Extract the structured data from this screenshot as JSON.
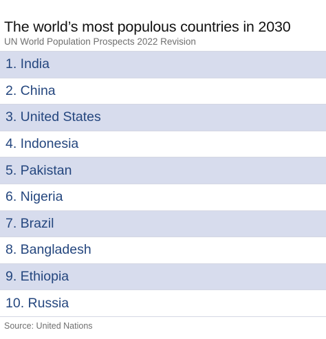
{
  "chart_data": {
    "type": "table",
    "title": "The world’s most populous countries in 2030",
    "subtitle": "UN World Population Prospects 2022 Revision",
    "rows": [
      "1. India",
      "2. China",
      "3. United States",
      "4. Indonesia",
      "5. Pakistan",
      "6. Nigeria",
      "7. Brazil",
      "8. Bangladesh",
      "9. Ethiopia",
      "10. Russia"
    ],
    "source": "Source: United Nations"
  },
  "colors": {
    "row_shade": "#d7dced",
    "row_text": "#24467e",
    "title_text": "#111111",
    "muted_text": "#6f6f6f"
  }
}
